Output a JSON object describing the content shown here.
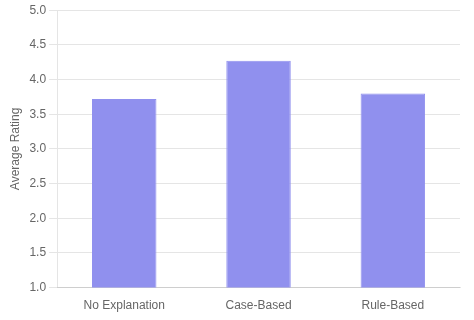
{
  "chart_data": {
    "type": "bar",
    "categories": [
      "No Explanation",
      "Case-Based",
      "Rule-Based"
    ],
    "values": [
      3.72,
      4.27,
      3.8
    ],
    "color": "#9090ee",
    "ylabel": "Average Rating",
    "ylim": [
      1,
      5
    ],
    "yticks": [
      {
        "value": 1,
        "label": "1.0"
      },
      {
        "value": 1.5,
        "label": "1.5"
      },
      {
        "value": 2,
        "label": "2.0"
      },
      {
        "value": 2.5,
        "label": "2.5"
      },
      {
        "value": 3,
        "label": "3.0"
      },
      {
        "value": 3.5,
        "label": "3.5"
      },
      {
        "value": 4,
        "label": "4.0"
      },
      {
        "value": 4.5,
        "label": "4.5"
      },
      {
        "value": 5,
        "label": "5.0"
      }
    ],
    "grid": true
  }
}
